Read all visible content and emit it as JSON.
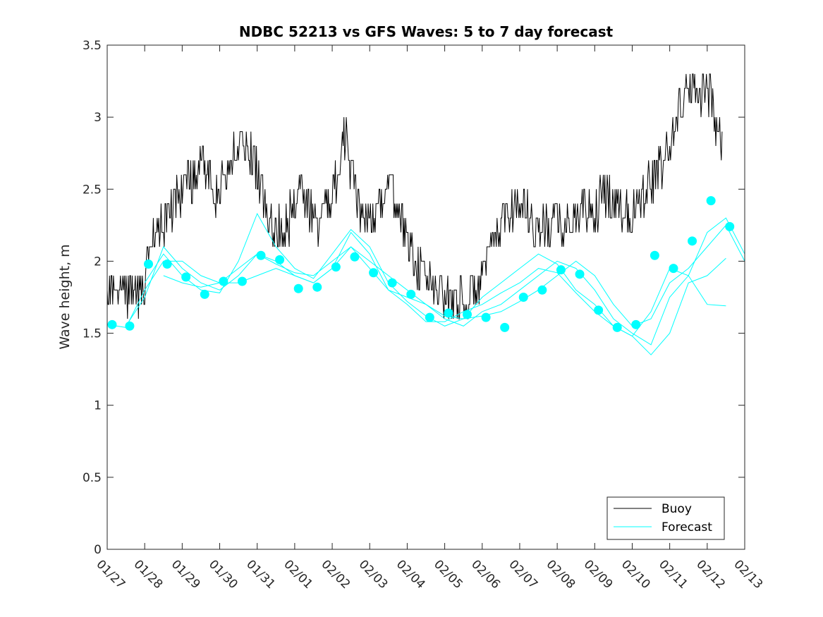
{
  "chart_data": {
    "type": "line",
    "title": "NDBC 52213 vs GFS Waves: 5 to 7 day forecast",
    "xlabel": "",
    "ylabel": "Wave height, m",
    "ylim": [
      0,
      3.5
    ],
    "xlim": [
      0,
      17
    ],
    "yticks": [
      0,
      0.5,
      1,
      1.5,
      2,
      2.5,
      3,
      3.5
    ],
    "ytick_labels": [
      "0",
      "0.5",
      "1",
      "1.5",
      "2",
      "2.5",
      "3",
      "3.5"
    ],
    "xtick_labels": [
      "01/27",
      "01/28",
      "01/29",
      "01/30",
      "01/31",
      "02/01",
      "02/02",
      "02/03",
      "02/04",
      "02/05",
      "02/06",
      "02/07",
      "02/08",
      "02/09",
      "02/10",
      "02/11",
      "02/12",
      "02/13"
    ],
    "grid": false,
    "legend": {
      "position": "bottom-right",
      "entries": [
        "Buoy",
        "Forecast"
      ]
    },
    "colors": {
      "buoy": "#000000",
      "forecast": "#00ffff"
    },
    "buoy": {
      "name": "Buoy",
      "x": [
        0,
        0.5,
        0.9,
        1.0,
        1.3,
        1.7,
        2.0,
        2.3,
        2.5,
        2.8,
        3.0,
        3.2,
        3.5,
        3.8,
        4.0,
        4.3,
        4.7,
        5.0,
        5.2,
        5.5,
        5.8,
        6.0,
        6.3,
        6.6,
        6.8,
        7.0,
        7.2,
        7.5,
        7.8,
        8.0,
        8.2,
        8.5,
        8.8,
        9.0,
        9.3,
        9.6,
        9.9,
        10.1,
        10.4,
        10.6,
        10.9,
        11.1,
        11.4,
        11.7,
        12.0,
        12.2,
        12.5,
        12.8,
        13.0,
        13.3,
        13.6,
        13.9,
        14.1,
        14.4,
        14.7,
        15.0,
        15.3,
        15.6,
        15.9,
        16.1,
        16.2,
        16.4
      ],
      "y": [
        1.8,
        1.8,
        1.8,
        1.85,
        2.2,
        2.35,
        2.5,
        2.6,
        2.7,
        2.55,
        2.45,
        2.65,
        2.8,
        2.75,
        2.6,
        2.3,
        2.2,
        2.4,
        2.5,
        2.3,
        2.3,
        2.45,
        2.9,
        2.5,
        2.3,
        2.3,
        2.4,
        2.5,
        2.4,
        2.1,
        2.0,
        1.9,
        1.8,
        1.75,
        1.75,
        1.7,
        1.85,
        1.95,
        2.2,
        2.3,
        2.4,
        2.4,
        2.25,
        2.2,
        2.3,
        2.25,
        2.3,
        2.35,
        2.35,
        2.45,
        2.4,
        2.35,
        2.4,
        2.55,
        2.6,
        2.8,
        3.1,
        3.2,
        3.2,
        3.15,
        3.0,
        2.8
      ]
    },
    "forecast_runs": [
      {
        "name": "Forecast",
        "x": [
          0,
          0.5,
          1.0,
          1.5,
          2.0,
          2.5,
          3.0,
          3.5,
          4.0,
          4.5,
          5.0,
          5.5,
          6.0,
          6.5,
          7.0,
          7.5,
          8.0,
          8.5,
          9.0,
          9.5,
          10.0,
          10.5,
          11.0,
          11.5,
          12.0,
          12.5,
          13.0,
          13.5,
          14.0,
          14.5,
          15.0,
          15.5,
          16.0,
          16.5,
          17.0
        ],
        "y": [
          1.56,
          1.54,
          1.8,
          2.0,
          2.0,
          1.9,
          1.85,
          1.85,
          1.9,
          1.95,
          1.9,
          1.85,
          1.95,
          2.1,
          2.0,
          1.9,
          1.8,
          1.7,
          1.62,
          1.6,
          1.62,
          1.65,
          1.72,
          1.8,
          1.9,
          2.0,
          1.9,
          1.7,
          1.55,
          1.6,
          1.85,
          1.95,
          2.1,
          2.25,
          2.0
        ]
      },
      {
        "name": "Forecast",
        "x": [
          0.5,
          1.0,
          1.5,
          2.0,
          2.5,
          3.0,
          3.5,
          4.0,
          4.5,
          5.0,
          5.5,
          6.0,
          6.5,
          7.0,
          7.5,
          8.0,
          8.5,
          9.0,
          9.5,
          10.0,
          10.5,
          11.0,
          11.5,
          12.0,
          12.5,
          13.0,
          13.5,
          14.0,
          14.5,
          15.0,
          15.5,
          16.0,
          16.5,
          17.0
        ],
        "y": [
          1.55,
          1.75,
          2.1,
          1.95,
          1.85,
          1.8,
          1.9,
          2.05,
          2.0,
          1.9,
          1.85,
          1.95,
          2.2,
          2.05,
          1.8,
          1.75,
          1.7,
          1.6,
          1.55,
          1.65,
          1.7,
          1.8,
          1.9,
          2.0,
          1.95,
          1.8,
          1.6,
          1.5,
          1.42,
          1.75,
          1.9,
          2.2,
          2.3,
          2.05
        ]
      },
      {
        "name": "Forecast",
        "x": [
          1.0,
          1.5,
          2.0,
          2.5,
          3.0,
          3.5,
          4.0,
          4.5,
          5.0,
          5.5,
          6.0,
          6.5,
          7.0,
          7.5,
          8.0,
          8.5,
          9.0,
          9.5,
          10.0,
          10.5,
          11.0,
          11.5,
          12.0,
          12.5,
          13.0,
          13.5,
          14.0,
          14.5,
          15.0,
          15.5,
          16.0,
          16.5
        ],
        "y": [
          1.85,
          2.05,
          1.9,
          1.8,
          1.78,
          2.0,
          2.33,
          2.1,
          1.95,
          1.88,
          2.05,
          2.22,
          2.1,
          1.85,
          1.72,
          1.62,
          1.55,
          1.6,
          1.75,
          1.85,
          1.95,
          2.05,
          1.98,
          1.8,
          1.7,
          1.55,
          1.48,
          1.35,
          1.5,
          1.85,
          1.9,
          2.02
        ]
      },
      {
        "name": "Forecast",
        "x": [
          1.5,
          2.0,
          2.5,
          3.0,
          3.5,
          4.0,
          4.5,
          5.0,
          5.5,
          6.0,
          6.5,
          7.0,
          7.5,
          8.0,
          8.5,
          9.0,
          9.5,
          10.0,
          10.5,
          11.0,
          11.5,
          12.0,
          12.5,
          13.0,
          13.5,
          14.0,
          14.5,
          15.0,
          15.5,
          16.0,
          16.5
        ],
        "y": [
          1.9,
          1.85,
          1.82,
          1.85,
          1.95,
          2.05,
          1.98,
          1.92,
          1.9,
          2.0,
          2.1,
          1.95,
          1.8,
          1.7,
          1.58,
          1.58,
          1.65,
          1.7,
          1.78,
          1.85,
          1.95,
          1.92,
          1.78,
          1.65,
          1.55,
          1.48,
          1.65,
          1.95,
          1.9,
          1.7,
          1.69
        ]
      }
    ],
    "forecast_markers": {
      "x": [
        0.1,
        0.6,
        1.1,
        1.6,
        2.1,
        2.6,
        3.1,
        3.6,
        4.1,
        4.6,
        5.1,
        5.6,
        6.1,
        6.6,
        7.1,
        7.6,
        8.1,
        8.6,
        9.1,
        9.6,
        10.1,
        10.6,
        11.1,
        11.6,
        12.1,
        12.6,
        13.1,
        13.6,
        14.1,
        14.6,
        15.1,
        15.6,
        16.1,
        16.6
      ],
      "y": [
        1.56,
        1.55,
        1.98,
        1.98,
        1.89,
        1.77,
        1.86,
        1.86,
        2.04,
        2.01,
        1.81,
        1.82,
        1.96,
        2.03,
        1.92,
        1.85,
        1.77,
        1.61,
        1.64,
        1.63,
        1.61,
        1.54,
        1.75,
        1.8,
        1.94,
        1.91,
        1.66,
        1.54,
        1.56,
        2.04,
        1.95,
        2.14,
        2.42,
        2.24
      ]
    }
  }
}
